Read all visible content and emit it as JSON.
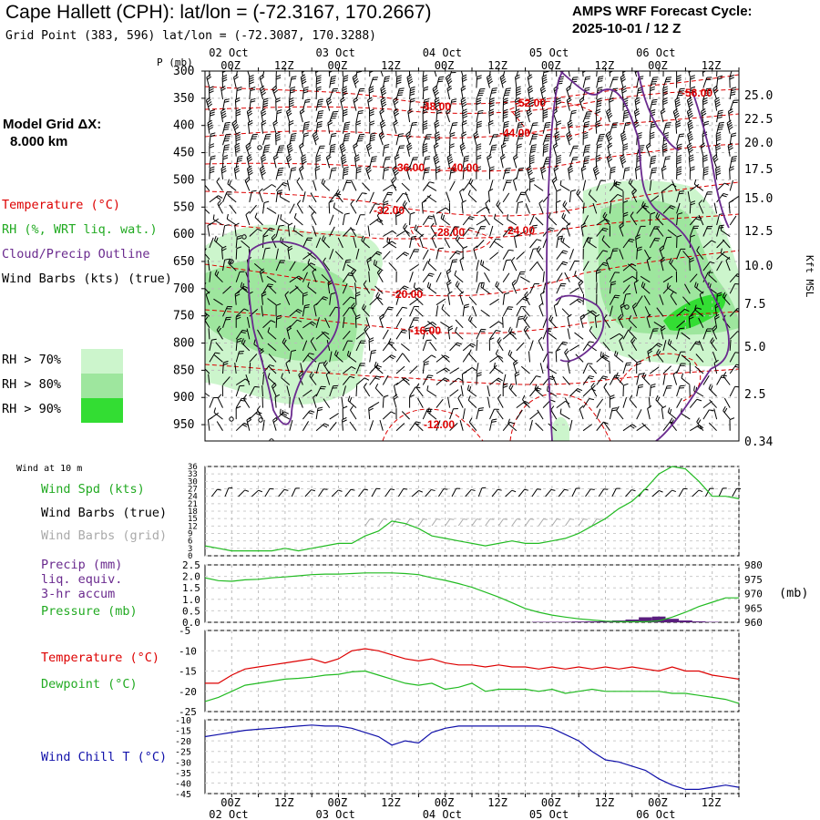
{
  "header": {
    "title": "Cape Hallett (CPH):  lat/lon = (-72.3167, 170.2667)",
    "grid_point": "Grid Point (383, 596) lat/lon = (-72.3087, 170.3288)",
    "cycle_line1": "AMPS WRF Forecast Cycle:",
    "cycle_line2": "2025-10-01 / 12  Z",
    "model_grid_line1": "Model Grid ΔX:",
    "model_grid_line2": "8.000 km"
  },
  "legend": {
    "temperature": {
      "label": "Temperature (°C)",
      "color": "#dd0000"
    },
    "rh": {
      "label": "RH (%, WRT liq. wat.)",
      "color": "#22aa22"
    },
    "cloud": {
      "label": "Cloud/Precip Outline",
      "color": "#6a2a8e"
    },
    "wind": {
      "label": "Wind Barbs (kts) (true)",
      "color": "#000000"
    },
    "rh70": {
      "label": "RH > 70%",
      "color": "#ccf5cc"
    },
    "rh80": {
      "label": "RH > 80%",
      "color": "#9ee69e"
    },
    "rh90": {
      "label": "RH > 90%",
      "color": "#33dd33"
    }
  },
  "panel_labels": {
    "wind10m": "Wind at 10 m",
    "wind_spd": "Wind Spd (kts)",
    "barbs_true": "Wind Barbs (true)",
    "barbs_grid": "Wind Barbs (grid)",
    "precip1": "Precip (mm)",
    "precip2": "liq. equiv.",
    "precip3": "3-hr accum",
    "pressure": "Pressure (mb)",
    "pressure_unit": "(mb)",
    "temp": "Temperature (°C)",
    "dewpoint": "Dewpoint (°C)",
    "windchill": "Wind Chill T (°C)",
    "p_axis": "P (mb)",
    "kft_axis": "Kft MSL"
  },
  "colors": {
    "temp": "#dd0000",
    "green": "#22bb22",
    "purple": "#6a2a8e",
    "blue": "#1111aa",
    "gray": "#aaaaaa",
    "precip_bar": "#5a1e7e"
  },
  "chart_data": [
    {
      "id": "upper",
      "type": "heatmap",
      "x_ticks": [
        "00Z",
        "12Z",
        "00Z",
        "12Z",
        "00Z",
        "12Z",
        "00Z",
        "12Z",
        "00Z",
        "12Z"
      ],
      "x_dates": [
        "02 Oct",
        "03 Oct",
        "04 Oct",
        "05 Oct",
        "06 Oct"
      ],
      "y_ticks": [
        "300",
        "350",
        "400",
        "450",
        "500",
        "550",
        "600",
        "650",
        "700",
        "750",
        "800",
        "850",
        "900",
        "950"
      ],
      "right_ticks": [
        "25.0",
        "22.5",
        "20.0",
        "17.5",
        "15.0",
        "12.5",
        "10.0",
        "7.5",
        "5.0",
        "2.5",
        "0.34"
      ],
      "ylim": [
        300,
        980
      ],
      "temperature_contours": [
        "-12.00",
        "-16.00",
        "-20.00",
        "-24.00",
        "-28.00",
        "-32.00",
        "-36.00",
        "-40.00",
        "-44.00",
        "-48.00",
        "-52.00",
        "-56.00"
      ]
    },
    {
      "id": "wind10m",
      "type": "line",
      "x_hours": [
        0,
        6,
        12,
        18,
        24,
        30,
        36,
        42,
        48,
        54,
        60,
        66,
        72,
        78,
        84,
        90,
        96,
        102,
        108,
        114,
        120,
        126,
        132,
        138,
        144,
        150,
        156,
        162,
        168,
        174,
        180,
        186,
        192,
        198,
        204,
        210,
        216,
        222,
        228,
        234,
        240
      ],
      "y_ticks": [
        "36",
        "33",
        "30",
        "27",
        "24",
        "21",
        "18",
        "15",
        "12",
        "9",
        "6",
        "3",
        "0"
      ],
      "ylim": [
        0,
        36
      ],
      "wind_speed": [
        4,
        3,
        2,
        2,
        2,
        2,
        3,
        2,
        3,
        4,
        5,
        5,
        8,
        10,
        14,
        13,
        11,
        8,
        7,
        6,
        5,
        4,
        5,
        6,
        5,
        5,
        6,
        7,
        9,
        12,
        15,
        19,
        22,
        27,
        33,
        36,
        35,
        30,
        24,
        24,
        23
      ]
    },
    {
      "id": "precip_pressure",
      "type": "line",
      "left_ticks": [
        "2.5",
        "2.0",
        "1.5",
        "1.0",
        "0.5",
        "0.0"
      ],
      "right_ticks": [
        "980",
        "975",
        "970",
        "965",
        "960"
      ],
      "precip_ylim": [
        0,
        2.5
      ],
      "pressure_ylim": [
        960,
        980
      ],
      "pressure": [
        975.5,
        974.5,
        974.3,
        974.8,
        975.0,
        975.5,
        975.8,
        976.2,
        976.6,
        976.8,
        976.8,
        977.0,
        977.2,
        977.2,
        977.2,
        977.0,
        976.6,
        975.5,
        974.6,
        973.5,
        972.2,
        970.5,
        968.8,
        966.8,
        964.8,
        963.5,
        962.5,
        961.8,
        961.2,
        960.8,
        960.4,
        960.2,
        960.2,
        960.2,
        960.5,
        961.8,
        963.5,
        965.5,
        967.0,
        968.5,
        968.5
      ],
      "precip_hours": [
        150,
        156,
        162,
        168,
        174,
        180,
        186,
        192,
        198,
        204,
        210,
        216,
        222,
        228
      ],
      "precip_values": [
        0.02,
        0.02,
        0.02,
        0.03,
        0.04,
        0.05,
        0.08,
        0.12,
        0.22,
        0.25,
        0.15,
        0.08,
        0.04,
        0.02
      ]
    },
    {
      "id": "temp_dew",
      "type": "line",
      "y_ticks": [
        "-5",
        "-10",
        "-15",
        "-20",
        "-25"
      ],
      "ylim": [
        -25,
        -5
      ],
      "temperature": [
        -18,
        -18,
        -16,
        -14.5,
        -14,
        -13.5,
        -13,
        -12.5,
        -12,
        -13,
        -12,
        -10,
        -9.5,
        -10,
        -11,
        -12,
        -12.5,
        -12,
        -13,
        -13.5,
        -13.5,
        -14,
        -13.5,
        -14,
        -14,
        -14.5,
        -14,
        -14.5,
        -14,
        -14.5,
        -14,
        -14.5,
        -14,
        -14.5,
        -15,
        -14,
        -15,
        -15,
        -16,
        -16.5,
        -17
      ],
      "dewpoint": [
        -22.5,
        -21.5,
        -20,
        -18.5,
        -18,
        -17.5,
        -17,
        -16.8,
        -16.5,
        -16,
        -15.8,
        -15.2,
        -15,
        -16,
        -17,
        -18,
        -18.5,
        -18,
        -19.5,
        -19,
        -18,
        -20,
        -19.5,
        -19.5,
        -19.5,
        -20,
        -19.5,
        -20.5,
        -20,
        -19.5,
        -20,
        -20,
        -20,
        -20,
        -20,
        -20.5,
        -20.5,
        -21,
        -21.5,
        -22,
        -23
      ]
    },
    {
      "id": "windchill",
      "type": "line",
      "y_ticks": [
        "-10",
        "-15",
        "-20",
        "-25",
        "-30",
        "-35",
        "-40",
        "-45"
      ],
      "ylim": [
        -45,
        -10
      ],
      "wind_chill": [
        -18,
        -17,
        -16,
        -15,
        -14.5,
        -14,
        -13.5,
        -13,
        -12.5,
        -13,
        -13,
        -14,
        -16,
        -18,
        -22,
        -20,
        -21,
        -16,
        -14,
        -13,
        -13,
        -13,
        -13,
        -13,
        -13,
        -13,
        -14,
        -17,
        -20,
        -25,
        -29,
        -30,
        -32,
        -34,
        -38,
        -41,
        -43,
        -43,
        -42,
        -41,
        -42
      ]
    }
  ]
}
